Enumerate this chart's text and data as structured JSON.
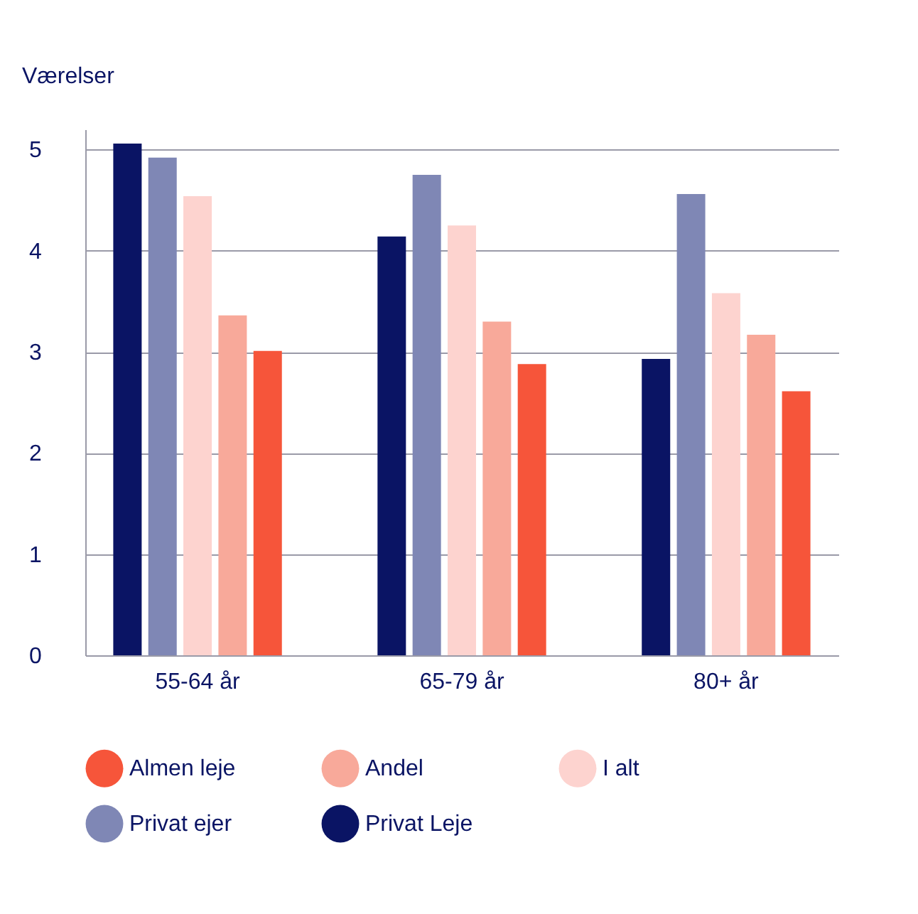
{
  "chart_data": {
    "type": "bar",
    "ylabel": "Værelser",
    "categories": [
      "55-64 år",
      "65-79 år",
      "80+ år"
    ],
    "series": [
      {
        "name": "Privat Leje",
        "color": "#0a1464",
        "values": [
          5.06,
          4.14,
          2.93
        ]
      },
      {
        "name": "Privat ejer",
        "color": "#7f87b5",
        "values": [
          4.92,
          4.75,
          4.56
        ]
      },
      {
        "name": "I alt",
        "color": "#fdd3cf",
        "values": [
          4.54,
          4.25,
          3.58
        ]
      },
      {
        "name": "Andel",
        "color": "#f8a99a",
        "values": [
          3.36,
          3.3,
          3.17
        ]
      },
      {
        "name": "Almen leje",
        "color": "#f6553a",
        "values": [
          3.01,
          2.88,
          2.61
        ]
      }
    ],
    "ylim": [
      0,
      5.2
    ],
    "yticks": [
      0,
      1,
      2,
      3,
      4,
      5
    ],
    "grid": "y",
    "legend": "bottom"
  }
}
